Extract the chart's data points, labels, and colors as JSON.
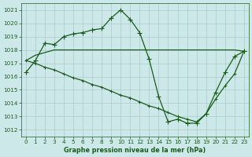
{
  "bg_color": "#cce8e8",
  "grid_color": "#aacccc",
  "line_color": "#1a5c1a",
  "marker_color": "#1a5c1a",
  "xlabel": "Graphe pression niveau de la mer (hPa)",
  "xlabel_color": "#1a5c1a",
  "tick_color": "#1a5c1a",
  "ylim": [
    1011.5,
    1021.5
  ],
  "yticks": [
    1012,
    1013,
    1014,
    1015,
    1016,
    1017,
    1018,
    1019,
    1020,
    1021
  ],
  "xlim": [
    -0.5,
    23.5
  ],
  "xticks": [
    0,
    1,
    2,
    3,
    4,
    5,
    6,
    7,
    8,
    9,
    10,
    11,
    12,
    13,
    14,
    15,
    16,
    17,
    18,
    19,
    20,
    21,
    22,
    23
  ],
  "series1_x": [
    0,
    1,
    2,
    3,
    4,
    5,
    6,
    7,
    8,
    9,
    10,
    11,
    12,
    13,
    14,
    15,
    16,
    17,
    18,
    19,
    20,
    21,
    22,
    23
  ],
  "series1_y": [
    1016.3,
    1017.2,
    1018.5,
    1018.4,
    1019.0,
    1019.2,
    1019.3,
    1019.5,
    1019.6,
    1020.4,
    1021.0,
    1020.3,
    1019.3,
    1017.3,
    1014.5,
    1012.6,
    1012.8,
    1012.5,
    1012.5,
    1013.2,
    1014.8,
    1016.3,
    1017.5,
    1017.9
  ],
  "series2_x": [
    0,
    1,
    2,
    3,
    4,
    5,
    6,
    7,
    8,
    9,
    10,
    11,
    12,
    13,
    14,
    15,
    16,
    17,
    18,
    19,
    20,
    21,
    22,
    23
  ],
  "series2_y": [
    1017.2,
    1017.6,
    1017.8,
    1018.0,
    1018.0,
    1018.0,
    1018.0,
    1018.0,
    1018.0,
    1018.0,
    1018.0,
    1018.0,
    1018.0,
    1018.0,
    1018.0,
    1018.0,
    1018.0,
    1018.0,
    1018.0,
    1018.0,
    1018.0,
    1018.0,
    1018.0,
    1017.9
  ],
  "series3_x": [
    0,
    1,
    2,
    3,
    4,
    5,
    6,
    7,
    8,
    9,
    10,
    11,
    12,
    13,
    14,
    15,
    16,
    17,
    18,
    19,
    20,
    21,
    22,
    23
  ],
  "series3_y": [
    1017.2,
    1017.0,
    1016.7,
    1016.5,
    1016.2,
    1015.9,
    1015.7,
    1015.4,
    1015.2,
    1014.9,
    1014.6,
    1014.4,
    1014.1,
    1013.8,
    1013.6,
    1013.3,
    1013.0,
    1012.8,
    1012.6,
    1013.2,
    1014.3,
    1015.3,
    1016.2,
    1017.9
  ]
}
